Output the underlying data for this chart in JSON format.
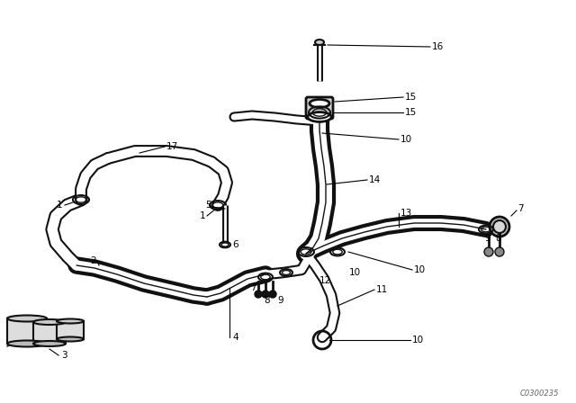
{
  "bg_color": "#ffffff",
  "diagram_color": "#111111",
  "watermark": "C0300235",
  "figsize": [
    6.4,
    4.48
  ],
  "dpi": 100
}
